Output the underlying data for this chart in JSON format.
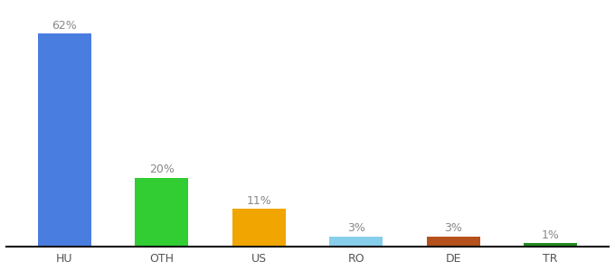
{
  "categories": [
    "HU",
    "OTH",
    "US",
    "RO",
    "DE",
    "TR"
  ],
  "values": [
    62,
    20,
    11,
    3,
    3,
    1
  ],
  "labels": [
    "62%",
    "20%",
    "11%",
    "3%",
    "3%",
    "1%"
  ],
  "bar_colors": [
    "#4a7de0",
    "#32cd32",
    "#f0a500",
    "#87ceeb",
    "#b5511c",
    "#228b22"
  ],
  "background_color": "#ffffff",
  "label_fontsize": 9,
  "tick_fontsize": 9,
  "bar_width": 0.55,
  "ylim": [
    0,
    70
  ]
}
